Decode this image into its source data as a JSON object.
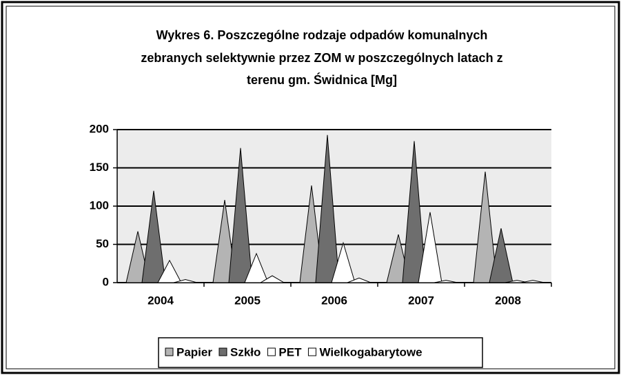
{
  "chart_data": {
    "type": "bar",
    "title": [
      "Wykres 6. Poszczególne rodzaje odpadów komunalnych",
      "zebranych selektywnie przez ZOM w poszczególnych latach z",
      "terenu gm. Świdnica [Mg]"
    ],
    "categories": [
      "2004",
      "2005",
      "2006",
      "2007",
      "2008"
    ],
    "series": [
      {
        "name": "Papier",
        "color": "#b4b4b4",
        "values": [
          67,
          108,
          127,
          63,
          145
        ]
      },
      {
        "name": "Szkło",
        "color": "#6e6e6e",
        "values": [
          120,
          176,
          193,
          185,
          71
        ]
      },
      {
        "name": "PET",
        "color": "#ffffff",
        "values": [
          29,
          38,
          52,
          92,
          3
        ]
      },
      {
        "name": "Wielkogabarytowe",
        "color": "#ffffff",
        "values": [
          4,
          9,
          6,
          3,
          3
        ]
      }
    ],
    "ylim": [
      0,
      200
    ],
    "yticks": [
      0,
      50,
      100,
      150,
      200
    ],
    "grid": true
  }
}
